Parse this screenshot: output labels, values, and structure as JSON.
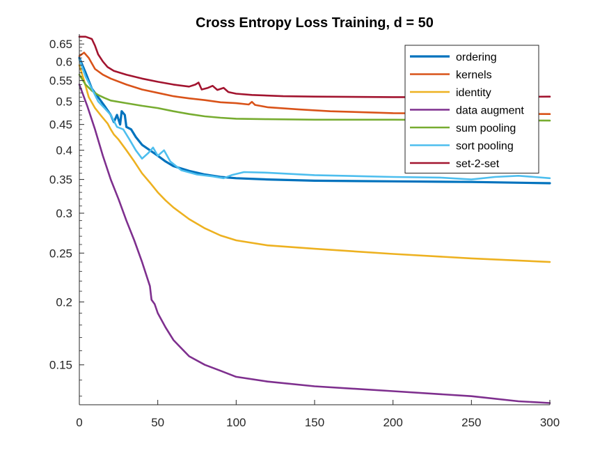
{
  "chart_data": {
    "type": "line",
    "title": "Cross Entropy Loss Training, d = 50",
    "xlabel": "",
    "ylabel": "",
    "xlim": [
      0,
      300
    ],
    "ylim": [
      0.125,
      0.68
    ],
    "yscale": "log",
    "grid": false,
    "legend_position": "top-right",
    "xticks": [
      0,
      50,
      100,
      150,
      200,
      250,
      300
    ],
    "xtick_labels": [
      "0",
      "50",
      "100",
      "150",
      "200",
      "250",
      "300"
    ],
    "yticks": [
      0.15,
      0.2,
      0.25,
      0.3,
      0.35,
      0.4,
      0.45,
      0.5,
      0.55,
      0.6,
      0.65
    ],
    "ytick_labels": [
      "0.15",
      "0.2",
      "0.25",
      "0.3",
      "0.35",
      "0.4",
      "0.45",
      "0.5",
      "0.55",
      "0.6",
      "0.65"
    ],
    "series": [
      {
        "name": "ordering",
        "color": "#0072BD",
        "points": [
          [
            0,
            0.61
          ],
          [
            4,
            0.57
          ],
          [
            8,
            0.53
          ],
          [
            12,
            0.51
          ],
          [
            16,
            0.49
          ],
          [
            20,
            0.47
          ],
          [
            22,
            0.455
          ],
          [
            24,
            0.47
          ],
          [
            26,
            0.45
          ],
          [
            27,
            0.478
          ],
          [
            29,
            0.47
          ],
          [
            30,
            0.445
          ],
          [
            33,
            0.44
          ],
          [
            36,
            0.425
          ],
          [
            40,
            0.41
          ],
          [
            45,
            0.4
          ],
          [
            50,
            0.39
          ],
          [
            55,
            0.38
          ],
          [
            60,
            0.372
          ],
          [
            70,
            0.364
          ],
          [
            80,
            0.358
          ],
          [
            90,
            0.354
          ],
          [
            100,
            0.352
          ],
          [
            120,
            0.35
          ],
          [
            150,
            0.348
          ],
          [
            200,
            0.347
          ],
          [
            250,
            0.346
          ],
          [
            300,
            0.344
          ]
        ]
      },
      {
        "name": "kernels",
        "color": "#D95319",
        "points": [
          [
            0,
            0.615
          ],
          [
            3,
            0.625
          ],
          [
            6,
            0.61
          ],
          [
            10,
            0.58
          ],
          [
            15,
            0.565
          ],
          [
            20,
            0.555
          ],
          [
            30,
            0.54
          ],
          [
            40,
            0.528
          ],
          [
            50,
            0.52
          ],
          [
            60,
            0.512
          ],
          [
            70,
            0.507
          ],
          [
            80,
            0.503
          ],
          [
            90,
            0.498
          ],
          [
            100,
            0.496
          ],
          [
            108,
            0.493
          ],
          [
            110,
            0.499
          ],
          [
            112,
            0.492
          ],
          [
            120,
            0.487
          ],
          [
            140,
            0.482
          ],
          [
            160,
            0.478
          ],
          [
            200,
            0.474
          ],
          [
            250,
            0.473
          ],
          [
            300,
            0.472
          ]
        ]
      },
      {
        "name": "identity",
        "color": "#EDB120",
        "points": [
          [
            0,
            0.59
          ],
          [
            3,
            0.55
          ],
          [
            6,
            0.51
          ],
          [
            10,
            0.485
          ],
          [
            14,
            0.468
          ],
          [
            18,
            0.452
          ],
          [
            20,
            0.44
          ],
          [
            22,
            0.43
          ],
          [
            25,
            0.42
          ],
          [
            30,
            0.4
          ],
          [
            35,
            0.38
          ],
          [
            40,
            0.36
          ],
          [
            45,
            0.345
          ],
          [
            50,
            0.33
          ],
          [
            55,
            0.318
          ],
          [
            60,
            0.308
          ],
          [
            70,
            0.292
          ],
          [
            80,
            0.28
          ],
          [
            90,
            0.271
          ],
          [
            100,
            0.265
          ],
          [
            120,
            0.259
          ],
          [
            150,
            0.255
          ],
          [
            200,
            0.249
          ],
          [
            250,
            0.244
          ],
          [
            300,
            0.24
          ]
        ]
      },
      {
        "name": "data augment",
        "color": "#7E2F8E",
        "points": [
          [
            0,
            0.54
          ],
          [
            5,
            0.49
          ],
          [
            10,
            0.44
          ],
          [
            15,
            0.39
          ],
          [
            20,
            0.35
          ],
          [
            25,
            0.32
          ],
          [
            30,
            0.29
          ],
          [
            35,
            0.265
          ],
          [
            40,
            0.24
          ],
          [
            45,
            0.215
          ],
          [
            46,
            0.202
          ],
          [
            48,
            0.198
          ],
          [
            50,
            0.19
          ],
          [
            55,
            0.178
          ],
          [
            60,
            0.168
          ],
          [
            70,
            0.156
          ],
          [
            80,
            0.15
          ],
          [
            90,
            0.146
          ],
          [
            100,
            0.142
          ],
          [
            120,
            0.139
          ],
          [
            150,
            0.136
          ],
          [
            200,
            0.133
          ],
          [
            250,
            0.13
          ],
          [
            280,
            0.127
          ],
          [
            300,
            0.126
          ]
        ]
      },
      {
        "name": "sum pooling",
        "color": "#77AC30",
        "points": [
          [
            0,
            0.565
          ],
          [
            4,
            0.54
          ],
          [
            8,
            0.525
          ],
          [
            12,
            0.515
          ],
          [
            16,
            0.508
          ],
          [
            20,
            0.502
          ],
          [
            30,
            0.496
          ],
          [
            40,
            0.49
          ],
          [
            50,
            0.485
          ],
          [
            60,
            0.478
          ],
          [
            70,
            0.472
          ],
          [
            80,
            0.467
          ],
          [
            90,
            0.464
          ],
          [
            100,
            0.462
          ],
          [
            120,
            0.461
          ],
          [
            150,
            0.46
          ],
          [
            200,
            0.46
          ],
          [
            250,
            0.459
          ],
          [
            300,
            0.458
          ]
        ]
      },
      {
        "name": "sort pooling",
        "color": "#4DBEEE",
        "points": [
          [
            0,
            0.605
          ],
          [
            4,
            0.56
          ],
          [
            8,
            0.53
          ],
          [
            12,
            0.5
          ],
          [
            16,
            0.485
          ],
          [
            20,
            0.47
          ],
          [
            24,
            0.445
          ],
          [
            28,
            0.44
          ],
          [
            32,
            0.42
          ],
          [
            36,
            0.4
          ],
          [
            40,
            0.385
          ],
          [
            44,
            0.395
          ],
          [
            47,
            0.405
          ],
          [
            50,
            0.39
          ],
          [
            54,
            0.4
          ],
          [
            58,
            0.38
          ],
          [
            65,
            0.365
          ],
          [
            75,
            0.358
          ],
          [
            85,
            0.355
          ],
          [
            92,
            0.352
          ],
          [
            97,
            0.357
          ],
          [
            105,
            0.362
          ],
          [
            120,
            0.361
          ],
          [
            150,
            0.357
          ],
          [
            200,
            0.354
          ],
          [
            230,
            0.353
          ],
          [
            250,
            0.35
          ],
          [
            265,
            0.354
          ],
          [
            280,
            0.356
          ],
          [
            290,
            0.354
          ],
          [
            300,
            0.352
          ]
        ]
      },
      {
        "name": "set-2-set",
        "color": "#A2142F",
        "points": [
          [
            0,
            0.672
          ],
          [
            4,
            0.672
          ],
          [
            8,
            0.665
          ],
          [
            10,
            0.645
          ],
          [
            12,
            0.62
          ],
          [
            15,
            0.6
          ],
          [
            18,
            0.585
          ],
          [
            22,
            0.575
          ],
          [
            30,
            0.565
          ],
          [
            40,
            0.555
          ],
          [
            50,
            0.547
          ],
          [
            60,
            0.54
          ],
          [
            70,
            0.535
          ],
          [
            74,
            0.54
          ],
          [
            76,
            0.545
          ],
          [
            78,
            0.528
          ],
          [
            82,
            0.532
          ],
          [
            85,
            0.537
          ],
          [
            88,
            0.527
          ],
          [
            92,
            0.532
          ],
          [
            95,
            0.522
          ],
          [
            100,
            0.518
          ],
          [
            110,
            0.515
          ],
          [
            130,
            0.512
          ],
          [
            150,
            0.511
          ],
          [
            200,
            0.51
          ],
          [
            250,
            0.51
          ],
          [
            300,
            0.511
          ]
        ]
      }
    ]
  }
}
